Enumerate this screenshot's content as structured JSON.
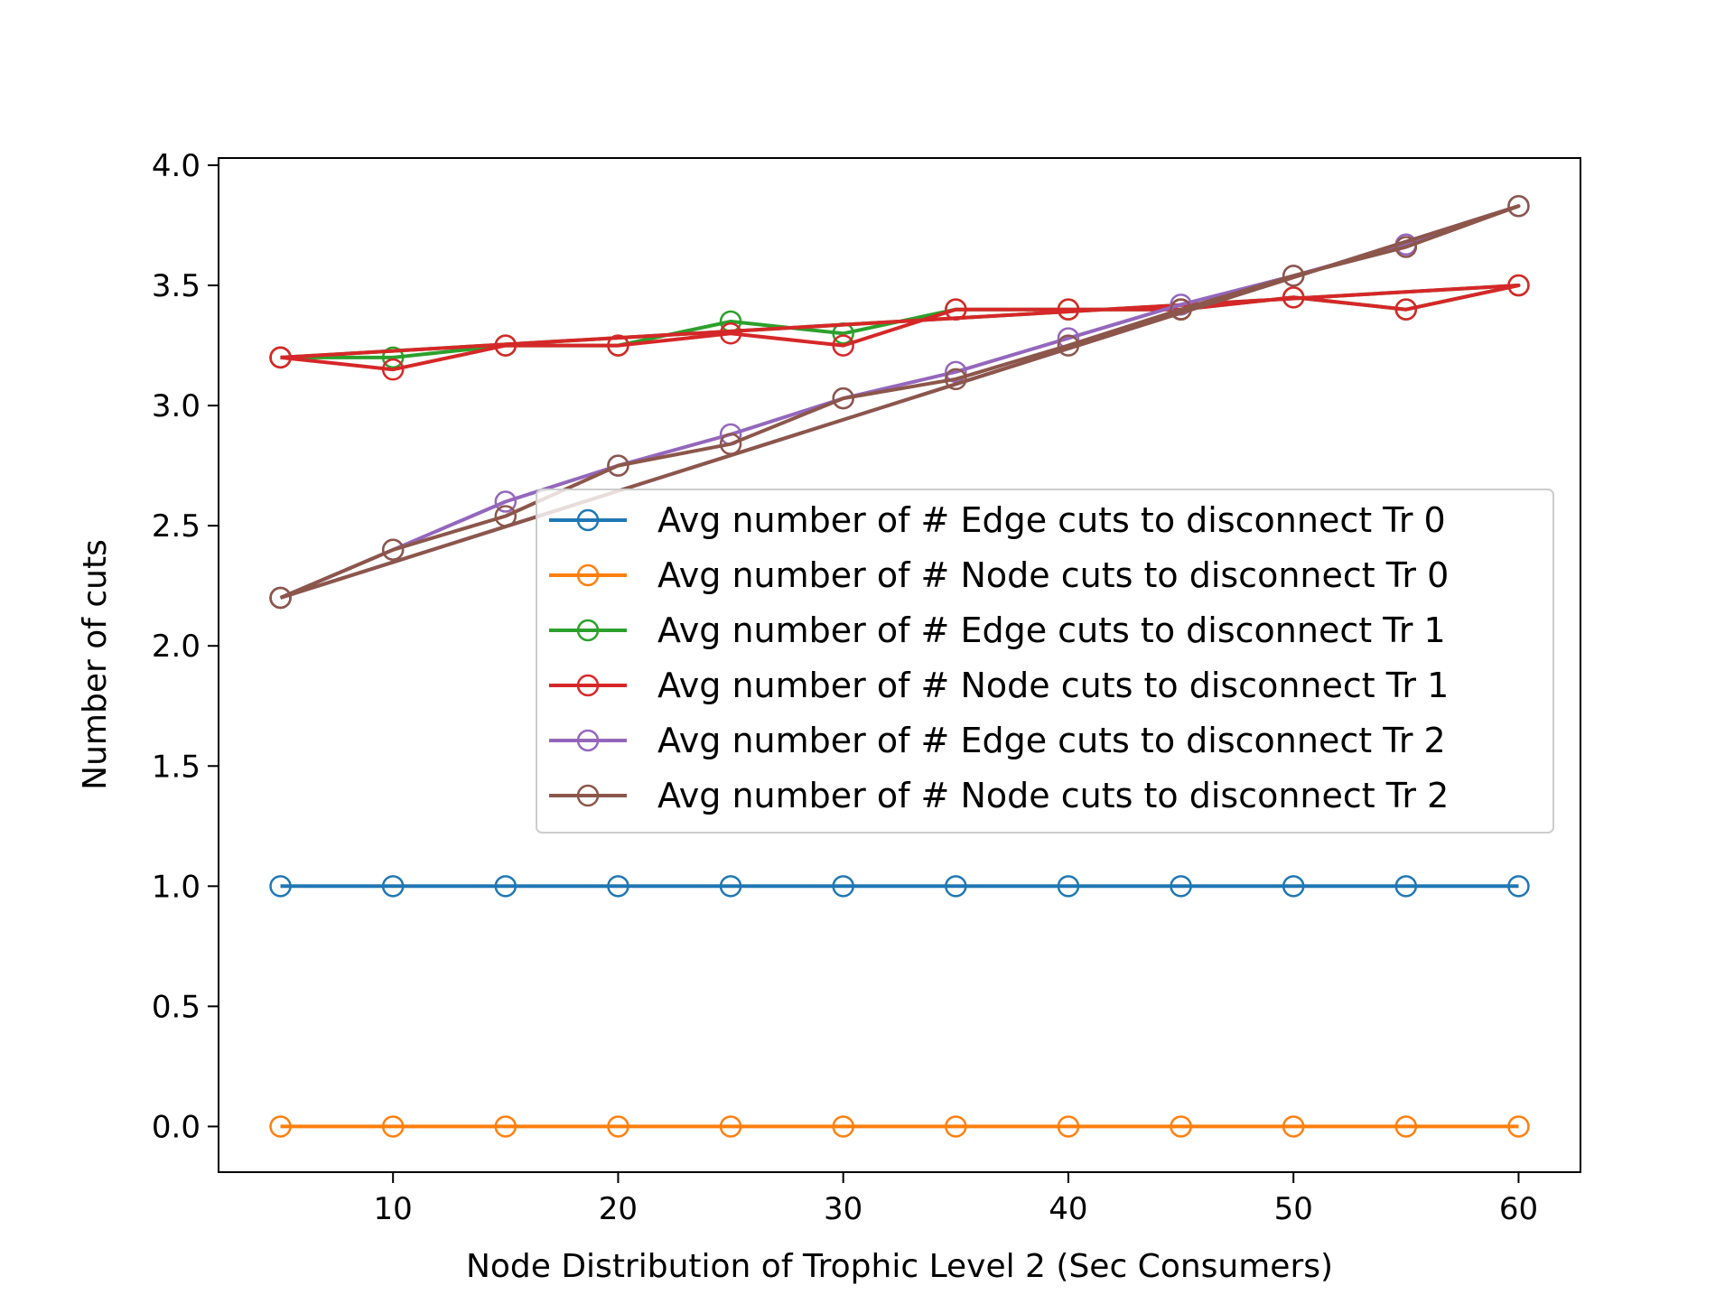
{
  "chart_data": {
    "type": "line",
    "title": "",
    "xlabel": "Node Distribution of Trophic Level 2 (Sec Consumers)",
    "ylabel": "Number of cuts",
    "xlim": [
      2.25,
      62.75
    ],
    "ylim": [
      -0.19,
      4.03
    ],
    "x_ticks": [
      10,
      20,
      30,
      40,
      50,
      60
    ],
    "x_tick_labels": [
      "10",
      "20",
      "30",
      "40",
      "50",
      "60"
    ],
    "y_ticks": [
      0.0,
      0.5,
      1.0,
      1.5,
      2.0,
      2.5,
      3.0,
      3.5,
      4.0
    ],
    "y_tick_labels": [
      "0.0",
      "0.5",
      "1.0",
      "1.5",
      "2.0",
      "2.5",
      "3.0",
      "3.5",
      "4.0"
    ],
    "grid": false,
    "legend_position": "center-right",
    "marker": "open-circle",
    "series": [
      {
        "name": "Avg number of # Edge cuts to disconnect Tr 0",
        "color": "#1f77b4",
        "x": [
          5,
          10,
          15,
          20,
          25,
          30,
          35,
          40,
          45,
          50,
          55,
          60
        ],
        "values": [
          1.0,
          1.0,
          1.0,
          1.0,
          1.0,
          1.0,
          1.0,
          1.0,
          1.0,
          1.0,
          1.0,
          1.0
        ]
      },
      {
        "name": "Avg number of # Node cuts to disconnect Tr 0",
        "color": "#ff7f0e",
        "x": [
          5,
          10,
          15,
          20,
          25,
          30,
          35,
          40,
          45,
          50,
          55,
          60
        ],
        "values": [
          0.0,
          0.0,
          0.0,
          0.0,
          0.0,
          0.0,
          0.0,
          0.0,
          0.0,
          0.0,
          0.0,
          0.0
        ]
      },
      {
        "name": "Avg number of # Edge cuts to disconnect Tr 1",
        "color": "#2ca02c",
        "x": [
          5,
          10,
          15,
          20,
          25,
          30,
          35,
          40,
          45,
          50,
          55,
          60,
          5
        ],
        "values": [
          3.2,
          3.2,
          3.25,
          3.25,
          3.35,
          3.3,
          3.4,
          3.4,
          3.4,
          3.45,
          3.4,
          3.5,
          3.2
        ]
      },
      {
        "name": "Avg number of # Node cuts to disconnect Tr 1",
        "color": "#d62728",
        "x": [
          5,
          10,
          15,
          20,
          25,
          30,
          35,
          40,
          45,
          50,
          55,
          60,
          5
        ],
        "values": [
          3.2,
          3.15,
          3.25,
          3.25,
          3.3,
          3.25,
          3.4,
          3.4,
          3.4,
          3.45,
          3.4,
          3.5,
          3.2
        ]
      },
      {
        "name": "Avg number of # Edge cuts to disconnect Tr 2",
        "color": "#9467bd",
        "x": [
          5,
          10,
          15,
          20,
          25,
          30,
          35,
          40,
          45,
          50,
          55,
          60,
          5
        ],
        "values": [
          2.2,
          2.4,
          2.6,
          2.75,
          2.88,
          3.03,
          3.14,
          3.28,
          3.42,
          3.54,
          3.67,
          3.83,
          2.2
        ]
      },
      {
        "name": "Avg number of # Node cuts to disconnect Tr 2",
        "color": "#8c564b",
        "x": [
          5,
          10,
          15,
          20,
          25,
          30,
          35,
          40,
          45,
          50,
          55,
          60,
          5
        ],
        "values": [
          2.2,
          2.4,
          2.54,
          2.75,
          2.84,
          3.03,
          3.11,
          3.25,
          3.4,
          3.54,
          3.66,
          3.83,
          2.2
        ]
      }
    ]
  }
}
